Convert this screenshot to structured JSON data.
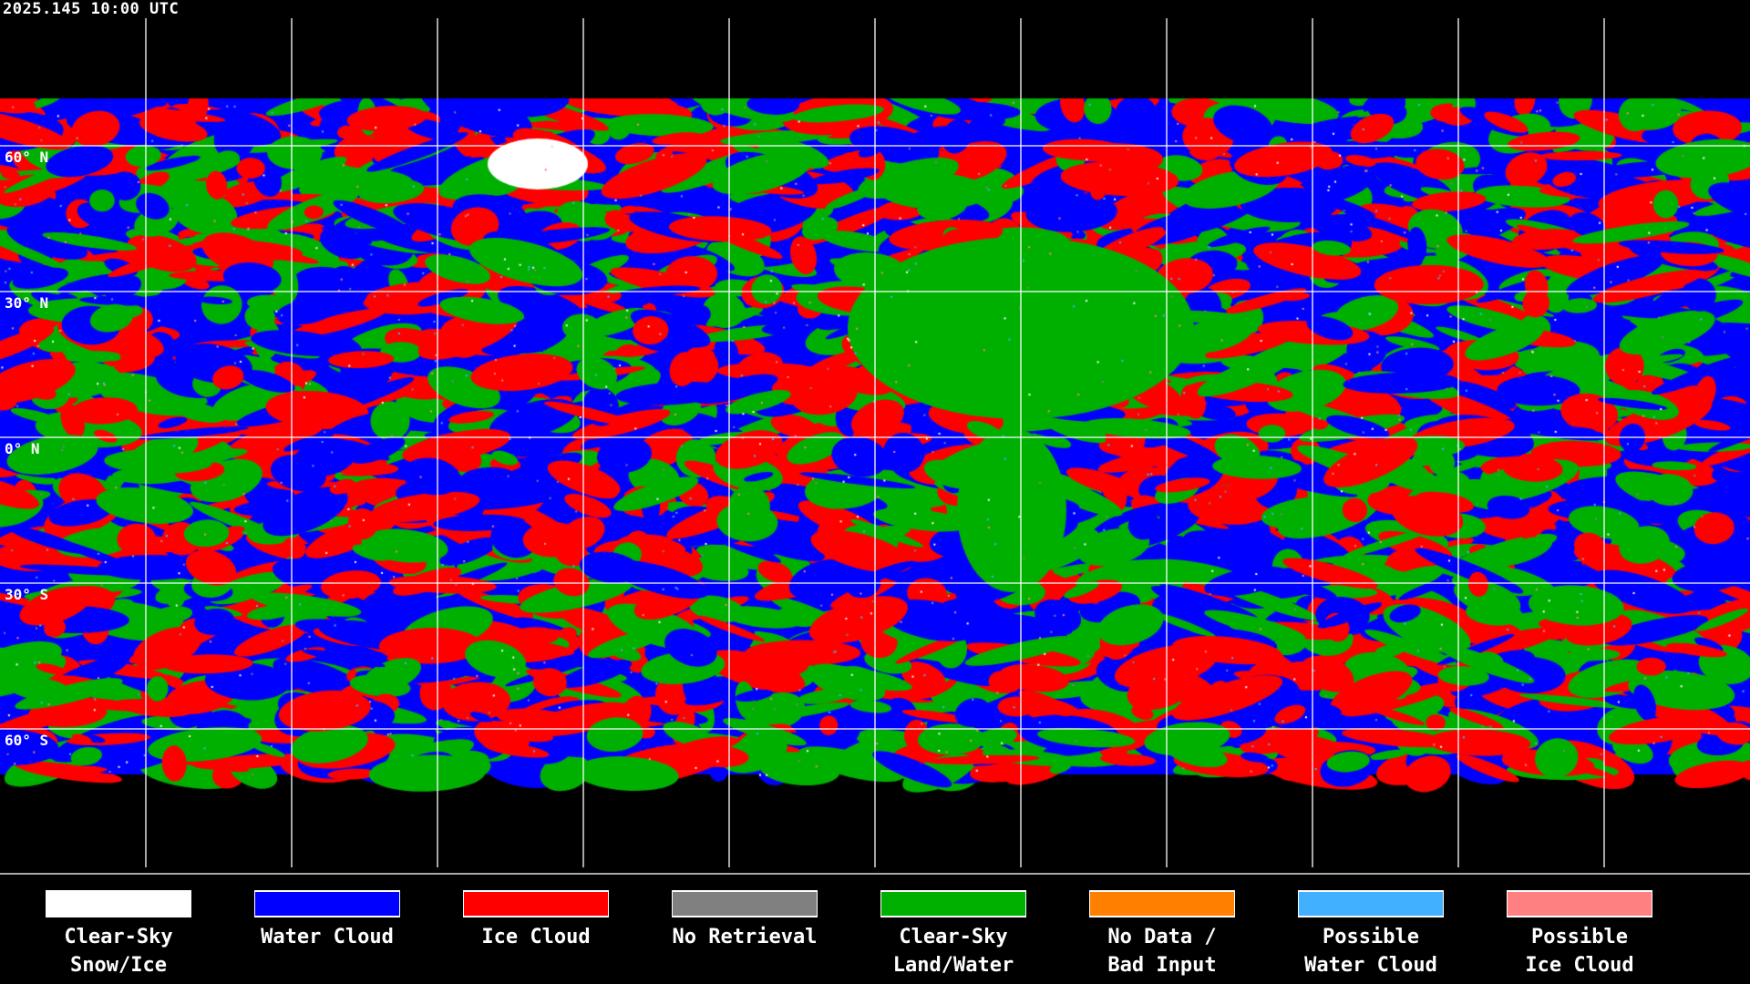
{
  "title": "2025.145 10:00 UTC",
  "latitude_labels": [
    "60° N",
    "30° N",
    "0° N",
    "30° S",
    "60° S"
  ],
  "legend": [
    {
      "label": "Clear-Sky\nSnow/Ice",
      "color": "#ffffff"
    },
    {
      "label": "Water Cloud",
      "color": "#0000ff"
    },
    {
      "label": "Ice Cloud",
      "color": "#ff0000"
    },
    {
      "label": "No Retrieval",
      "color": "#808080"
    },
    {
      "label": "Clear-Sky\nLand/Water",
      "color": "#00b000"
    },
    {
      "label": "No Data /\nBad Input",
      "color": "#ff8000"
    },
    {
      "label": "Possible\nWater Cloud",
      "color": "#40b0ff"
    },
    {
      "label": "Possible\nIce Cloud",
      "color": "#ff8080"
    }
  ]
}
